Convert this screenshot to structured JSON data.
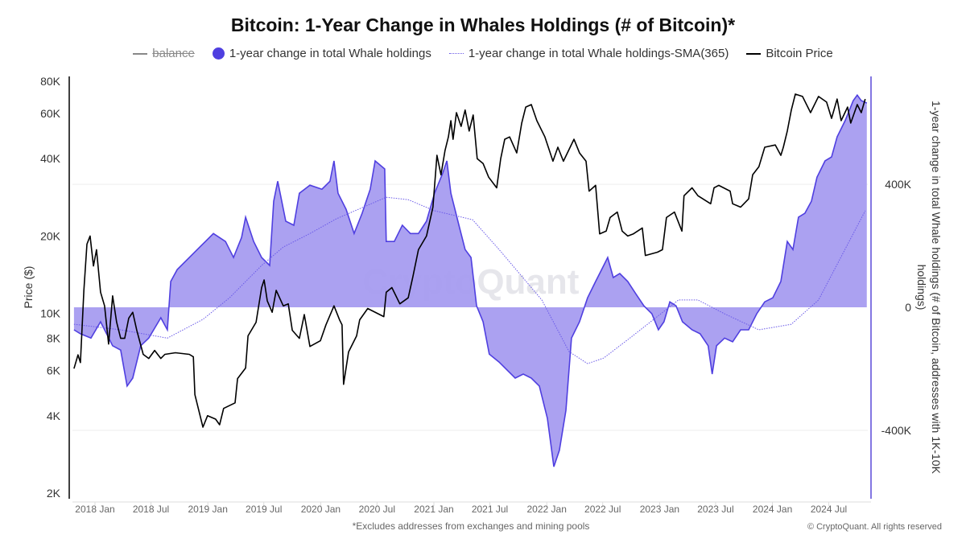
{
  "chart_data": {
    "type": "line",
    "title": "Bitcoin: 1-Year Change in Whales Holdings (# of Bitcoin)*",
    "legend": [
      {
        "name": "balance",
        "hidden": true,
        "color": "#888888"
      },
      {
        "name": "1-year change in total Whale holdings",
        "color": "#4f3fe0"
      },
      {
        "name": "1-year change in total Whale holdings-SMA(365)",
        "color": "#6a5ae8"
      },
      {
        "name": "Bitcoin Price",
        "color": "#000000"
      }
    ],
    "legend_placement": "top",
    "ylabel_left": "Price ($)",
    "ylabel_right": "1-year change in total Whale holdings (# of Bitcoin, addresses with 1K-10K holdings)",
    "y_left": {
      "scale": "log",
      "range": [
        2000,
        80000
      ],
      "ticks": [
        {
          "v": 80000,
          "label": "80K"
        },
        {
          "v": 60000,
          "label": "60K"
        },
        {
          "v": 40000,
          "label": "40K"
        },
        {
          "v": 20000,
          "label": "20K"
        },
        {
          "v": 10000,
          "label": "10K"
        },
        {
          "v": 8000,
          "label": "8K"
        },
        {
          "v": 6000,
          "label": "6K"
        },
        {
          "v": 4000,
          "label": "4K"
        },
        {
          "v": 2000,
          "label": "2K"
        }
      ]
    },
    "y_right": {
      "scale": "linear",
      "range": [
        -604000,
        735000
      ],
      "ticks": [
        {
          "v": 400000,
          "label": "400K"
        },
        {
          "v": 0,
          "label": "0"
        },
        {
          "v": -400000,
          "label": "-400K"
        }
      ]
    },
    "x_ticks": [
      {
        "date": "2018-01-01",
        "label": "2018 Jan"
      },
      {
        "date": "2018-07-01",
        "label": "2018 Jul"
      },
      {
        "date": "2019-01-01",
        "label": "2019 Jan"
      },
      {
        "date": "2019-07-01",
        "label": "2019 Jul"
      },
      {
        "date": "2020-01-01",
        "label": "2020 Jan"
      },
      {
        "date": "2020-07-01",
        "label": "2020 Jul"
      },
      {
        "date": "2021-01-01",
        "label": "2021 Jan"
      },
      {
        "date": "2021-07-01",
        "label": "2021 Jul"
      },
      {
        "date": "2022-01-01",
        "label": "2022 Jan"
      },
      {
        "date": "2022-07-01",
        "label": "2022 Jul"
      },
      {
        "date": "2023-01-01",
        "label": "2023 Jan"
      },
      {
        "date": "2023-07-01",
        "label": "2023 Jul"
      },
      {
        "date": "2024-01-01",
        "label": "2024 Jan"
      },
      {
        "date": "2024-07-01",
        "label": "2024 Jul"
      }
    ],
    "grid": "horizontal at right-axis ticks",
    "whale_change": [
      [
        "2017-10-25",
        -73000
      ],
      [
        "2017-11-15",
        -86000
      ],
      [
        "2017-12-19",
        -100000
      ],
      [
        "2018-01-19",
        -47000
      ],
      [
        "2018-02-27",
        -125000
      ],
      [
        "2018-03-25",
        -139000
      ],
      [
        "2018-04-15",
        -256000
      ],
      [
        "2018-05-03",
        -230000
      ],
      [
        "2018-05-29",
        -125000
      ],
      [
        "2018-06-24",
        -100000
      ],
      [
        "2018-08-02",
        -34000
      ],
      [
        "2018-08-23",
        -73000
      ],
      [
        "2018-09-03",
        84000
      ],
      [
        "2018-09-24",
        123000
      ],
      [
        "2018-11-02",
        162000
      ],
      [
        "2018-12-11",
        201000
      ],
      [
        "2019-01-19",
        240000
      ],
      [
        "2019-02-27",
        214000
      ],
      [
        "2019-03-25",
        162000
      ],
      [
        "2019-04-20",
        227000
      ],
      [
        "2019-05-03",
        293000
      ],
      [
        "2019-05-29",
        214000
      ],
      [
        "2019-06-24",
        162000
      ],
      [
        "2019-07-20",
        136000
      ],
      [
        "2019-08-02",
        345000
      ],
      [
        "2019-08-15",
        410000
      ],
      [
        "2019-09-10",
        280000
      ],
      [
        "2019-10-06",
        267000
      ],
      [
        "2019-10-24",
        371000
      ],
      [
        "2019-11-27",
        397000
      ],
      [
        "2020-01-05",
        384000
      ],
      [
        "2020-01-31",
        410000
      ],
      [
        "2020-02-13",
        476000
      ],
      [
        "2020-02-26",
        371000
      ],
      [
        "2020-03-23",
        319000
      ],
      [
        "2020-04-18",
        240000
      ],
      [
        "2020-05-14",
        306000
      ],
      [
        "2020-06-09",
        384000
      ],
      [
        "2020-06-25",
        476000
      ],
      [
        "2020-07-26",
        450000
      ],
      [
        "2020-07-31",
        214000
      ],
      [
        "2020-08-26",
        214000
      ],
      [
        "2020-09-21",
        267000
      ],
      [
        "2020-10-17",
        240000
      ],
      [
        "2020-11-12",
        240000
      ],
      [
        "2020-12-08",
        280000
      ],
      [
        "2021-01-03",
        371000
      ],
      [
        "2021-01-30",
        437000
      ],
      [
        "2021-02-12",
        476000
      ],
      [
        "2021-02-25",
        371000
      ],
      [
        "2021-03-23",
        267000
      ],
      [
        "2021-04-12",
        188000
      ],
      [
        "2021-05-01",
        162000
      ],
      [
        "2021-05-19",
        5000
      ],
      [
        "2021-06-09",
        -47000
      ],
      [
        "2021-06-29",
        -152000
      ],
      [
        "2021-07-31",
        -178000
      ],
      [
        "2021-08-26",
        -204000
      ],
      [
        "2021-09-21",
        -230000
      ],
      [
        "2021-10-17",
        -217000
      ],
      [
        "2021-11-12",
        -230000
      ],
      [
        "2021-12-08",
        -256000
      ],
      [
        "2022-01-03",
        -361000
      ],
      [
        "2022-01-24",
        -518000
      ],
      [
        "2022-02-11",
        -465000
      ],
      [
        "2022-03-04",
        -335000
      ],
      [
        "2022-03-22",
        -100000
      ],
      [
        "2022-04-17",
        -47000
      ],
      [
        "2022-05-13",
        31000
      ],
      [
        "2022-06-08",
        84000
      ],
      [
        "2022-06-21",
        110000
      ],
      [
        "2022-07-17",
        162000
      ],
      [
        "2022-08-04",
        97000
      ],
      [
        "2022-08-25",
        110000
      ],
      [
        "2022-09-20",
        84000
      ],
      [
        "2022-10-16",
        44000
      ],
      [
        "2022-11-11",
        5000
      ],
      [
        "2022-12-07",
        -21000
      ],
      [
        "2022-12-28",
        -73000
      ],
      [
        "2023-01-15",
        -47000
      ],
      [
        "2023-02-03",
        18000
      ],
      [
        "2023-02-23",
        5000
      ],
      [
        "2023-03-16",
        -47000
      ],
      [
        "2023-04-16",
        -73000
      ],
      [
        "2023-05-12",
        -86000
      ],
      [
        "2023-06-07",
        -125000
      ],
      [
        "2023-06-20",
        -217000
      ],
      [
        "2023-07-04",
        -125000
      ],
      [
        "2023-07-30",
        -100000
      ],
      [
        "2023-08-25",
        -112000
      ],
      [
        "2023-09-20",
        -73000
      ],
      [
        "2023-10-16",
        -73000
      ],
      [
        "2023-11-11",
        -21000
      ],
      [
        "2023-12-07",
        18000
      ],
      [
        "2024-01-02",
        31000
      ],
      [
        "2024-01-28",
        84000
      ],
      [
        "2024-02-18",
        214000
      ],
      [
        "2024-03-07",
        188000
      ],
      [
        "2024-03-25",
        293000
      ],
      [
        "2024-04-15",
        306000
      ],
      [
        "2024-05-06",
        345000
      ],
      [
        "2024-05-24",
        423000
      ],
      [
        "2024-06-19",
        476000
      ],
      [
        "2024-07-10",
        489000
      ],
      [
        "2024-07-28",
        554000
      ],
      [
        "2024-08-23",
        607000
      ],
      [
        "2024-09-18",
        672000
      ],
      [
        "2024-10-01",
        690000
      ],
      [
        "2024-10-14",
        672000
      ],
      [
        "2024-11-01",
        664000
      ]
    ],
    "whale_change_sma365": [
      [
        "2017-10-25",
        -55000
      ],
      [
        "2018-03-25",
        -73000
      ],
      [
        "2018-08-23",
        -100000
      ],
      [
        "2018-12-16",
        -39000
      ],
      [
        "2019-03-12",
        31000
      ],
      [
        "2019-06-24",
        136000
      ],
      [
        "2019-09-02",
        196000
      ],
      [
        "2019-11-27",
        240000
      ],
      [
        "2020-02-21",
        288000
      ],
      [
        "2020-07-31",
        358000
      ],
      [
        "2020-10-10",
        350000
      ],
      [
        "2021-01-03",
        314000
      ],
      [
        "2021-05-06",
        285000
      ],
      [
        "2021-07-31",
        188000
      ],
      [
        "2021-12-16",
        24000
      ],
      [
        "2022-03-14",
        -144000
      ],
      [
        "2022-05-13",
        -183000
      ],
      [
        "2022-07-04",
        -165000
      ],
      [
        "2022-09-28",
        -99000
      ],
      [
        "2023-03-03",
        24000
      ],
      [
        "2023-05-05",
        24000
      ],
      [
        "2023-07-30",
        -21000
      ],
      [
        "2023-11-18",
        -73000
      ],
      [
        "2024-03-02",
        -55000
      ],
      [
        "2024-05-29",
        24000
      ],
      [
        "2024-10-27",
        314000
      ]
    ],
    "bitcoin_price": [
      [
        "2017-10-25",
        6100
      ],
      [
        "2017-11-07",
        6900
      ],
      [
        "2017-11-15",
        6440
      ],
      [
        "2017-11-26",
        12300
      ],
      [
        "2017-12-06",
        18600
      ],
      [
        "2017-12-16",
        20000
      ],
      [
        "2017-12-27",
        15300
      ],
      [
        "2018-01-06",
        17700
      ],
      [
        "2018-01-19",
        12100
      ],
      [
        "2018-02-01",
        10700
      ],
      [
        "2018-02-14",
        7600
      ],
      [
        "2018-02-27",
        11700
      ],
      [
        "2018-03-12",
        9240
      ],
      [
        "2018-03-25",
        8000
      ],
      [
        "2018-04-07",
        8000
      ],
      [
        "2018-04-20",
        9580
      ],
      [
        "2018-05-03",
        10100
      ],
      [
        "2018-05-16",
        8600
      ],
      [
        "2018-06-06",
        6930
      ],
      [
        "2018-06-24",
        6680
      ],
      [
        "2018-07-13",
        7180
      ],
      [
        "2018-08-02",
        6680
      ],
      [
        "2018-08-15",
        6930
      ],
      [
        "2018-09-18",
        7030
      ],
      [
        "2018-11-02",
        6930
      ],
      [
        "2018-11-15",
        6780
      ],
      [
        "2018-11-20",
        4830
      ],
      [
        "2018-12-16",
        3610
      ],
      [
        "2018-12-31",
        4000
      ],
      [
        "2019-01-26",
        3880
      ],
      [
        "2019-02-08",
        3690
      ],
      [
        "2019-02-21",
        4270
      ],
      [
        "2019-03-30",
        4490
      ],
      [
        "2019-04-07",
        5580
      ],
      [
        "2019-05-03",
        6130
      ],
      [
        "2019-05-11",
        8180
      ],
      [
        "2019-06-06",
        9240
      ],
      [
        "2019-06-24",
        12600
      ],
      [
        "2019-07-02",
        13500
      ],
      [
        "2019-07-12",
        11200
      ],
      [
        "2019-07-28",
        10100
      ],
      [
        "2019-08-10",
        12300
      ],
      [
        "2019-09-02",
        10700
      ],
      [
        "2019-09-18",
        10900
      ],
      [
        "2019-10-01",
        8600
      ],
      [
        "2019-10-24",
        8000
      ],
      [
        "2019-11-09",
        9900
      ],
      [
        "2019-11-27",
        7440
      ],
      [
        "2019-12-31",
        7830
      ],
      [
        "2020-01-18",
        9030
      ],
      [
        "2020-02-13",
        10700
      ],
      [
        "2020-03-02",
        9440
      ],
      [
        "2020-03-10",
        9030
      ],
      [
        "2020-03-15",
        5300
      ],
      [
        "2020-03-31",
        7080
      ],
      [
        "2020-04-26",
        8180
      ],
      [
        "2020-05-06",
        9440
      ],
      [
        "2020-06-01",
        10450
      ],
      [
        "2020-07-23",
        9720
      ],
      [
        "2020-07-31",
        12100
      ],
      [
        "2020-08-18",
        12600
      ],
      [
        "2020-09-13",
        10900
      ],
      [
        "2020-10-10",
        11500
      ],
      [
        "2020-10-25",
        13900
      ],
      [
        "2020-11-12",
        17700
      ],
      [
        "2020-12-08",
        20000
      ],
      [
        "2020-12-29",
        25900
      ],
      [
        "2021-01-11",
        41200
      ],
      [
        "2021-01-24",
        34600
      ],
      [
        "2021-02-06",
        43000
      ],
      [
        "2021-02-17",
        48600
      ],
      [
        "2021-02-25",
        56200
      ],
      [
        "2021-03-04",
        47600
      ],
      [
        "2021-03-15",
        60400
      ],
      [
        "2021-03-30",
        53400
      ],
      [
        "2021-04-12",
        61800
      ],
      [
        "2021-04-25",
        51200
      ],
      [
        "2021-05-08",
        59100
      ],
      [
        "2021-05-21",
        40000
      ],
      [
        "2021-06-09",
        38300
      ],
      [
        "2021-06-27",
        33900
      ],
      [
        "2021-07-23",
        30800
      ],
      [
        "2021-08-05",
        40000
      ],
      [
        "2021-08-18",
        47600
      ],
      [
        "2021-09-03",
        48600
      ],
      [
        "2021-09-26",
        42100
      ],
      [
        "2021-10-12",
        55000
      ],
      [
        "2021-10-25",
        63500
      ],
      [
        "2021-11-12",
        64900
      ],
      [
        "2021-11-30",
        56200
      ],
      [
        "2021-12-26",
        48600
      ],
      [
        "2022-01-21",
        39100
      ],
      [
        "2022-02-06",
        44300
      ],
      [
        "2022-02-24",
        39100
      ],
      [
        "2022-03-30",
        47600
      ],
      [
        "2022-04-17",
        42100
      ],
      [
        "2022-05-08",
        39100
      ],
      [
        "2022-05-18",
        29900
      ],
      [
        "2022-06-08",
        31500
      ],
      [
        "2022-06-21",
        20400
      ],
      [
        "2022-07-12",
        20900
      ],
      [
        "2022-07-25",
        23600
      ],
      [
        "2022-08-17",
        24800
      ],
      [
        "2022-09-02",
        20900
      ],
      [
        "2022-09-20",
        20000
      ],
      [
        "2022-10-08",
        20400
      ],
      [
        "2022-11-06",
        21500
      ],
      [
        "2022-11-16",
        16800
      ],
      [
        "2022-12-25",
        17300
      ],
      [
        "2023-01-10",
        17700
      ],
      [
        "2023-01-23",
        23600
      ],
      [
        "2023-02-18",
        24800
      ],
      [
        "2023-03-14",
        20900
      ],
      [
        "2023-03-21",
        28700
      ],
      [
        "2023-04-16",
        30800
      ],
      [
        "2023-05-05",
        28700
      ],
      [
        "2023-06-15",
        26700
      ],
      [
        "2023-06-26",
        30800
      ],
      [
        "2023-07-11",
        31500
      ],
      [
        "2023-08-17",
        29900
      ],
      [
        "2023-08-25",
        26700
      ],
      [
        "2023-09-20",
        25900
      ],
      [
        "2023-10-16",
        27900
      ],
      [
        "2023-10-29",
        34600
      ],
      [
        "2023-11-18",
        37200
      ],
      [
        "2023-12-07",
        44300
      ],
      [
        "2024-01-10",
        45200
      ],
      [
        "2024-01-28",
        41200
      ],
      [
        "2024-02-05",
        44300
      ],
      [
        "2024-02-18",
        51200
      ],
      [
        "2024-03-02",
        61800
      ],
      [
        "2024-03-15",
        71300
      ],
      [
        "2024-04-07",
        69800
      ],
      [
        "2024-05-03",
        60400
      ],
      [
        "2024-05-29",
        69800
      ],
      [
        "2024-06-24",
        66400
      ],
      [
        "2024-07-10",
        57400
      ],
      [
        "2024-07-28",
        68200
      ],
      [
        "2024-08-10",
        56200
      ],
      [
        "2024-08-31",
        63500
      ],
      [
        "2024-09-10",
        55000
      ],
      [
        "2024-10-01",
        64900
      ],
      [
        "2024-10-14",
        60400
      ],
      [
        "2024-10-27",
        68200
      ]
    ],
    "colors": {
      "whale_line": "#4f3fe0",
      "whale_fill": "#a69cf0",
      "sma": "#6a5ae8",
      "price": "#000000",
      "right_axis": "#5a4ad8"
    }
  },
  "watermark": "CryptoQuant",
  "footnote": "*Excludes addresses from exchanges and mining pools",
  "copyright": "© CryptoQuant. All rights reserved"
}
